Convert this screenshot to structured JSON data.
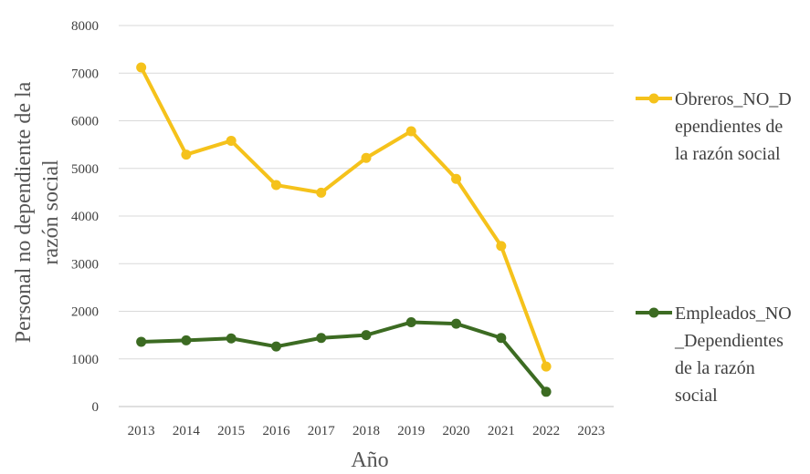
{
  "chart_data": {
    "type": "line",
    "categories": [
      "2013",
      "2014",
      "2015",
      "2016",
      "2017",
      "2018",
      "2019",
      "2020",
      "2021",
      "2022",
      "2023"
    ],
    "ylim": [
      0,
      8000
    ],
    "yticks": [
      0,
      1000,
      2000,
      3000,
      4000,
      5000,
      6000,
      7000,
      8000
    ],
    "xlabel": "Año",
    "ylabel_lines": [
      "Personal no dependiente de la",
      "razón social"
    ],
    "grid": "horizontal",
    "legend_position": "right",
    "series": [
      {
        "name": "Obreros_NO_Dependientes de la razón social",
        "legend_lines": [
          "Obreros_NO_D",
          "ependientes de",
          "la razón social"
        ],
        "color": "#F5C21B",
        "values": [
          7120,
          5290,
          5580,
          4650,
          4490,
          5220,
          5780,
          4780,
          3370,
          840,
          null
        ]
      },
      {
        "name": "Empleados_NO_Dependientes de la razón social",
        "legend_lines": [
          "Empleados_NO",
          "_Dependientes",
          "de la razón",
          "social"
        ],
        "color": "#3C6B22",
        "values": [
          1360,
          1390,
          1430,
          1260,
          1440,
          1500,
          1770,
          1740,
          1440,
          310,
          null
        ]
      }
    ]
  }
}
